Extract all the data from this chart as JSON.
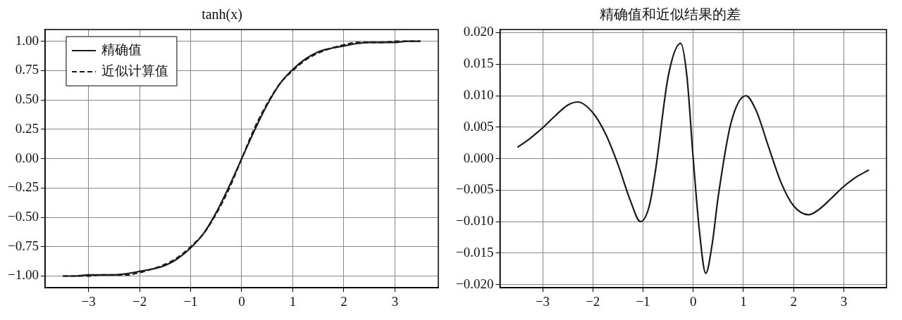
{
  "chart_data": [
    {
      "type": "line",
      "title": "tanh(x)",
      "x": [
        -3.5,
        -3.25,
        -3,
        -2.75,
        -2.5,
        -2.25,
        -2,
        -1.75,
        -1.5,
        -1.25,
        -1,
        -0.75,
        -0.5,
        -0.25,
        0,
        0.25,
        0.5,
        0.75,
        1,
        1.25,
        1.5,
        1.75,
        2,
        2.25,
        2.5,
        2.75,
        3,
        3.25,
        3.5
      ],
      "series": [
        {
          "name": "精确值",
          "color": "#1a1a1a",
          "line_style": "solid",
          "values": [
            -1.0,
            -1.0,
            -0.99,
            -0.99,
            -0.99,
            -0.98,
            -0.96,
            -0.94,
            -0.91,
            -0.85,
            -0.76,
            -0.64,
            -0.46,
            -0.24,
            0.0,
            0.24,
            0.46,
            0.64,
            0.76,
            0.85,
            0.91,
            0.94,
            0.96,
            0.98,
            0.99,
            0.99,
            0.99,
            1.0,
            1.0
          ]
        },
        {
          "name": "近似计算值",
          "color": "#1a1a1a",
          "line_style": "dashed",
          "values": [
            -1.0,
            -1.0,
            -1.0,
            -0.99,
            -0.99,
            -0.99,
            -0.97,
            -0.94,
            -0.9,
            -0.84,
            -0.75,
            -0.64,
            -0.47,
            -0.26,
            0.0,
            0.26,
            0.47,
            0.64,
            0.75,
            0.84,
            0.9,
            0.94,
            0.97,
            0.99,
            0.99,
            0.99,
            1.0,
            1.0,
            1.0
          ]
        }
      ],
      "xlim": [
        -3.85,
        3.85
      ],
      "xticks": [
        {
          "value": -3,
          "label": "−3"
        },
        {
          "value": -2,
          "label": "−2"
        },
        {
          "value": -1,
          "label": "−1"
        },
        0,
        1,
        2,
        3
      ],
      "ylim": [
        -1.1,
        1.1
      ],
      "yticks": [
        {
          "value": -1,
          "label": "−1.00"
        },
        {
          "value": -0.75,
          "label": "−0.75"
        },
        {
          "value": -0.5,
          "label": "−0.50"
        },
        {
          "value": -0.25,
          "label": "−0.25"
        },
        {
          "value": 0,
          "label": "0.00"
        },
        {
          "value": 0.25,
          "label": "0.25"
        },
        {
          "value": 0.5,
          "label": "0.50"
        },
        {
          "value": 0.75,
          "label": "0.75"
        },
        {
          "value": 1,
          "label": "1.00"
        }
      ],
      "grid": true,
      "legend": "top left",
      "marker": "none"
    },
    {
      "type": "line",
      "title": "精确值和近似结果的差",
      "x": [
        -3.5,
        -3.25,
        -3,
        -2.75,
        -2.5,
        -2.3,
        -2,
        -1.75,
        -1.5,
        -1.25,
        -1.05,
        -0.875,
        -0.75,
        -0.5,
        -0.25,
        -0.125,
        0,
        0.125,
        0.25,
        0.375,
        0.5,
        0.75,
        1.05,
        1.25,
        1.5,
        1.75,
        2,
        2.3,
        2.5,
        2.75,
        3,
        3.25,
        3.5
      ],
      "series": [
        {
          "color": "#1a1a1a",
          "line_style": "solid",
          "values": [
            0.0018,
            0.0032,
            0.0049,
            0.0068,
            0.0085,
            0.009,
            0.0073,
            0.004,
            -0.0009,
            -0.0067,
            -0.01,
            -0.0075,
            -0.0018,
            0.013,
            0.0183,
            0.013,
            0.0,
            -0.0116,
            -0.0182,
            -0.0137,
            -0.0059,
            0.0056,
            0.01,
            0.0077,
            0.0019,
            -0.0038,
            -0.0075,
            -0.0089,
            -0.0081,
            -0.0063,
            -0.0044,
            -0.0029,
            -0.0018
          ]
        }
      ],
      "xlim": [
        -3.85,
        3.85
      ],
      "xticks": [
        {
          "value": -3,
          "label": "−3"
        },
        {
          "value": -2,
          "label": "−2"
        },
        {
          "value": -1,
          "label": "−1"
        },
        0,
        1,
        2,
        3
      ],
      "ylim": [
        -0.0205,
        0.0205
      ],
      "yticks": [
        {
          "value": -0.02,
          "label": "−0.020"
        },
        {
          "value": -0.015,
          "label": "−0.015"
        },
        {
          "value": -0.01,
          "label": "−0.010"
        },
        {
          "value": -0.005,
          "label": "−0.005"
        },
        {
          "value": 0,
          "label": "0.000"
        },
        {
          "value": 0.005,
          "label": "0.005"
        },
        {
          "value": 0.01,
          "label": "0.010"
        },
        {
          "value": 0.015,
          "label": "0.015"
        },
        {
          "value": 0.02,
          "label": "0.020"
        }
      ],
      "grid": true,
      "legend": false,
      "marker": "none"
    }
  ]
}
